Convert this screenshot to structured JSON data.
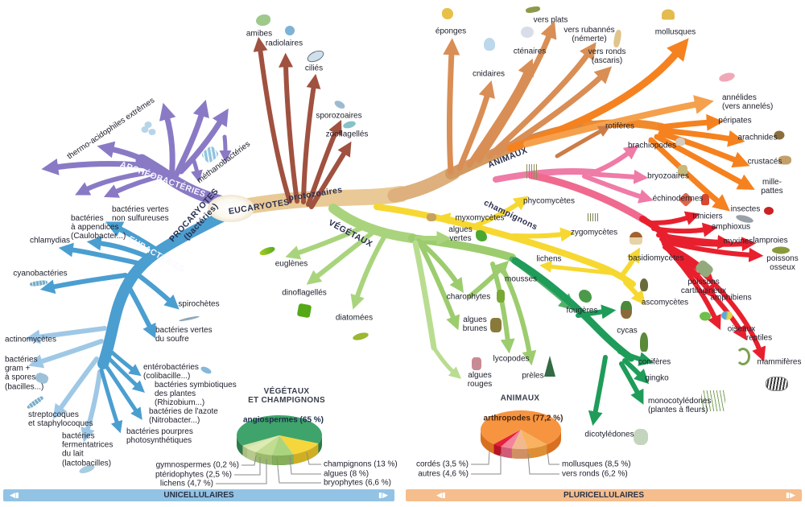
{
  "tree": {
    "trunks": {
      "eucaryotes": "EUCARYOTES",
      "procaryotes": "PROCARYOTES\n(bactéries)",
      "archeobacteries": "ARCHÉOBACTÉRIES",
      "eubacteries": "EUBACTÉRIES",
      "protozoaires": "protozoaires",
      "animaux": "ANIMAUX",
      "champignons": "champignons",
      "vegetaux": "VÉGÉTAUX"
    },
    "archaea": [
      "thermo-acidophiles extrêmes",
      "méthanobactéries",
      "bactéries vertes\nnon sulfureuses"
    ],
    "bacteria": [
      "bactéries\nà appendices\n(Caulobacter...)",
      "chlamydias",
      "cyanobactéries",
      "actinomycètes",
      "bactéries\ngram +\nà spores\n(bacilles...)",
      "streptocoques\net staphylocoques",
      "bactéries\nfermentatrices\ndu lait\n(lactobacilles)",
      "spirochètes",
      "bactéries vertes\ndu soufre",
      "entérobactéries\n(colibacille...)",
      "bactéries symbiotiques\ndes plantes\n(Rhizobium...)",
      "bactéries de l'azote\n(Nitrobacter...)",
      "bactéries pourpres\nphotosynthétiques"
    ],
    "protozoa": [
      "amibes",
      "radiolaires",
      "ciliés",
      "sporozoaires",
      "zooflagellés"
    ],
    "animals": [
      "éponges",
      "cnidaires",
      "cténaires",
      "vers plats",
      "vers rubannés\n(némerte)",
      "vers ronds\n(ascaris)",
      "mollusques",
      "annélides\n(vers annelés)",
      "péripates",
      "arachnides",
      "crustacés",
      "mille-pattes",
      "insectes",
      "rotifères",
      "brachiopodes",
      "bryozoaires",
      "échinodermes",
      "tuniciers",
      "amphioxus",
      "myxines",
      "lamproies",
      "poissons\nosseux",
      "poissons\ncartilagineux",
      "amphibiens",
      "oiseaux",
      "reptiles",
      "mammifères"
    ],
    "fungi": [
      "phycomycètes",
      "myxomycètes",
      "zygomycètes",
      "lichens",
      "basidiomycètes",
      "ascomycètes"
    ],
    "plants": [
      "euglènes",
      "dinoflagellés",
      "diatomées",
      "algues\nvertes",
      "charophytes",
      "algues\nbrunes",
      "mousses",
      "algues\nrouges",
      "lycopodes",
      "prèles",
      "fougères",
      "cycas",
      "conifères",
      "gingko",
      "monocotylédones\n(plantes à fleurs)",
      "dicotylédones"
    ]
  },
  "chart_data": [
    {
      "type": "pie",
      "title": "VÉGÉTAUX\nET CHAMPIGNONS",
      "legend_position": "below",
      "slices": [
        {
          "name": "angiospermes",
          "value": 65,
          "label": "angiospermes (65 %)",
          "color": "#3fa46b",
          "side": "#2d7a4c"
        },
        {
          "name": "gymnospermes",
          "value": 0.2,
          "label": "gymnospermes (0,2 %)",
          "color": "#6b8f4a",
          "side": "#4f6b36"
        },
        {
          "name": "ptéridophytes",
          "value": 2.5,
          "label": "ptéridophytes (2,5 %)",
          "color": "#d2e4a6",
          "side": "#aabf80"
        },
        {
          "name": "lichens",
          "value": 4.7,
          "label": "lichens (4,7 %)",
          "color": "#dfeab5",
          "side": "#b9c98d"
        },
        {
          "name": "bryophytes",
          "value": 6.6,
          "label": "bryophytes (6,6 %)",
          "color": "#c2dc92",
          "side": "#9bb96c"
        },
        {
          "name": "algues",
          "value": 8,
          "label": "algues (8 %)",
          "color": "#abd47f",
          "side": "#86ae59"
        },
        {
          "name": "champignons",
          "value": 13,
          "label": "champignons (13 %)",
          "color": "#f5d63d",
          "side": "#cfae24"
        }
      ]
    },
    {
      "type": "pie",
      "title": "ANIMAUX",
      "legend_position": "below",
      "slices": [
        {
          "name": "arthropodes",
          "value": 77.2,
          "label": "arthropodes (77,2 %)",
          "color": "#f79440",
          "side": "#d9701f"
        },
        {
          "name": "cordés",
          "value": 3.5,
          "label": "cordés (3,5 %)",
          "color": "#e61f3b",
          "side": "#b81226"
        },
        {
          "name": "autres",
          "value": 4.6,
          "label": "autres (4,6 %)",
          "color": "#f2849c",
          "side": "#d05a77"
        },
        {
          "name": "vers ronds",
          "value": 6.2,
          "label": "vers ronds (6,2 %)",
          "color": "#f2b98e",
          "side": "#d19063"
        },
        {
          "name": "mollusques",
          "value": 8.5,
          "label": "mollusques (8,5 %)",
          "color": "#f9b360",
          "side": "#dd8f35"
        }
      ]
    }
  ],
  "footer": {
    "left": "UNICELLULAIRES",
    "right": "PLURICELLULAIRES"
  },
  "icons": {
    "arrow_left": "◀▮",
    "arrow_right": "▮▶"
  },
  "colors": {
    "archaea": "#8a7ac5",
    "bacteria": "#4b9ed0",
    "trunk": "#e9c995",
    "protozoa": "#a0513f",
    "animals_orange": "#f5821f",
    "chordates_red": "#e8202e",
    "lophophores_pink": "#ef7ba7",
    "fungi_yellow": "#f6d831",
    "plants_light": "#a9d47d",
    "plants_dark": "#1f9c59",
    "footer_left_bar": "#92c3e4",
    "footer_right_bar": "#f6bd8d"
  }
}
